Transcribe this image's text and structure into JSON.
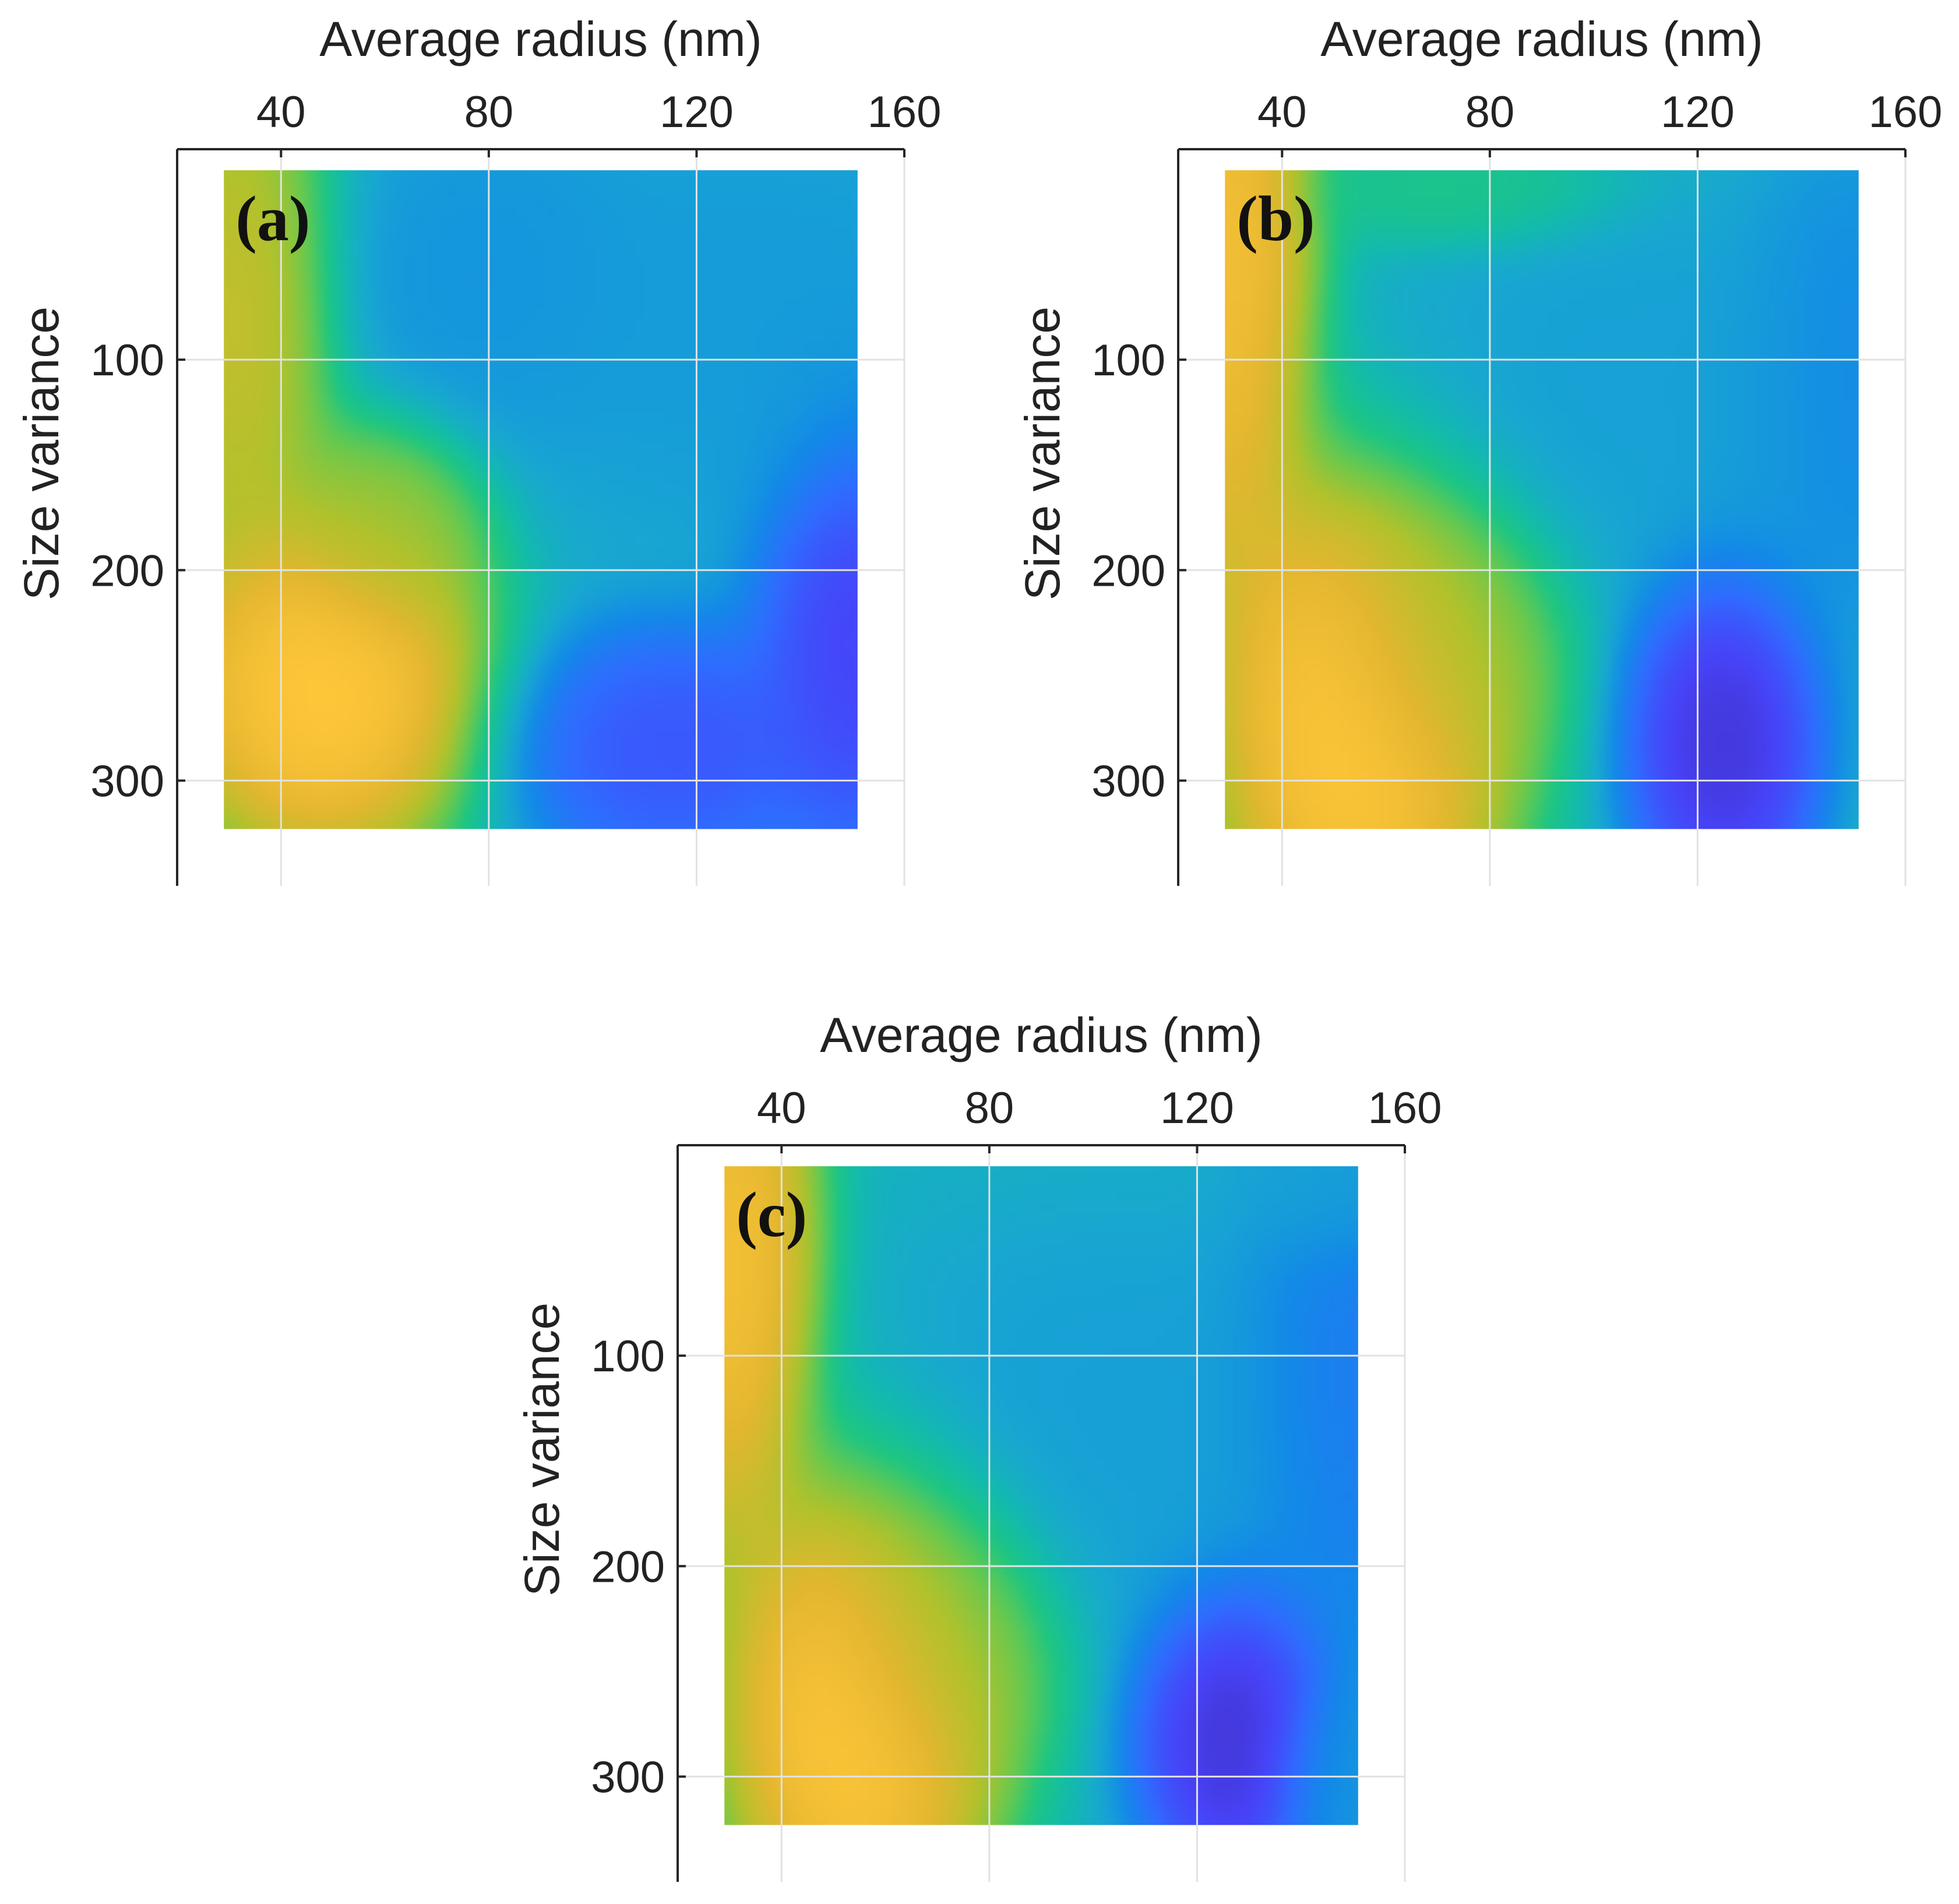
{
  "colormap": [
    "#3e26a8",
    "#4743f8",
    "#2f6cff",
    "#1389e8",
    "#18a8d0",
    "#13bcaa",
    "#1fc681",
    "#67c94f",
    "#b1c22c",
    "#e2b72f",
    "#fec539",
    "#f8fa0d"
  ],
  "chart_data": [
    {
      "type": "heatmap",
      "panel_label": "(a)",
      "xlabel": "Average radius (nm)",
      "ylabel": "Size variance",
      "xlim": [
        20,
        160
      ],
      "ylim": [
        350,
        0
      ],
      "xticks": [
        40,
        80,
        120,
        160
      ],
      "xtick_labels": [
        "40",
        "80",
        "120",
        "160"
      ],
      "yticks": [
        100,
        200,
        300
      ],
      "ytick_labels": [
        "100",
        "200",
        "300"
      ],
      "data_extent": {
        "x": [
          29,
          151
        ],
        "y": [
          10,
          323
        ]
      },
      "grid": true,
      "baseline": 0.38,
      "peaks": [
        {
          "x": 31,
          "y": 80,
          "value": 0.82,
          "sx": 10,
          "sy": 70
        },
        {
          "x": 48,
          "y": 255,
          "value": 1.0,
          "sx": 16,
          "sy": 45
        },
        {
          "x": 60,
          "y": 180,
          "value": 0.72,
          "sx": 10,
          "sy": 28
        },
        {
          "x": 115,
          "y": 285,
          "value": 0.1,
          "sx": 16,
          "sy": 30
        },
        {
          "x": 151,
          "y": 230,
          "value": 0.05,
          "sx": 10,
          "sy": 55
        },
        {
          "x": 80,
          "y": 60,
          "value": 0.3,
          "sx": 15,
          "sy": 40
        },
        {
          "x": 130,
          "y": 80,
          "value": 0.32,
          "sx": 25,
          "sy": 50
        }
      ]
    },
    {
      "type": "heatmap",
      "panel_label": "(b)",
      "xlabel": "Average radius (nm)",
      "ylabel": "Size variance",
      "xlim": [
        20,
        160
      ],
      "ylim": [
        350,
        0
      ],
      "xticks": [
        40,
        80,
        120,
        160
      ],
      "xtick_labels": [
        "40",
        "80",
        "120",
        "160"
      ],
      "yticks": [
        100,
        200,
        300
      ],
      "ytick_labels": [
        "100",
        "200",
        "300"
      ],
      "data_extent": {
        "x": [
          29,
          151
        ],
        "y": [
          10,
          323
        ]
      },
      "grid": true,
      "baseline": 0.42,
      "peaks": [
        {
          "x": 30,
          "y": 60,
          "value": 0.95,
          "sx": 9,
          "sy": 80
        },
        {
          "x": 55,
          "y": 270,
          "value": 1.0,
          "sx": 15,
          "sy": 65
        },
        {
          "x": 70,
          "y": 230,
          "value": 0.7,
          "sx": 12,
          "sy": 40
        },
        {
          "x": 125,
          "y": 280,
          "value": 0.0,
          "sx": 10,
          "sy": 45
        },
        {
          "x": 150,
          "y": 110,
          "value": 0.25,
          "sx": 12,
          "sy": 60
        },
        {
          "x": 110,
          "y": 110,
          "value": 0.33,
          "sx": 30,
          "sy": 50
        },
        {
          "x": 75,
          "y": 20,
          "value": 0.55,
          "sx": 15,
          "sy": 15
        }
      ]
    },
    {
      "type": "heatmap",
      "panel_label": "(c)",
      "xlabel": "Average radius (nm)",
      "ylabel": "Size variance",
      "xlim": [
        20,
        160
      ],
      "ylim": [
        350,
        0
      ],
      "xticks": [
        40,
        80,
        120,
        160
      ],
      "xtick_labels": [
        "40",
        "80",
        "120",
        "160"
      ],
      "yticks": [
        100,
        200,
        300
      ],
      "ytick_labels": [
        "100",
        "200",
        "300"
      ],
      "data_extent": {
        "x": [
          29,
          151
        ],
        "y": [
          10,
          323
        ]
      },
      "grid": true,
      "baseline": 0.4,
      "peaks": [
        {
          "x": 30,
          "y": 60,
          "value": 0.95,
          "sx": 9,
          "sy": 70
        },
        {
          "x": 55,
          "y": 270,
          "value": 1.0,
          "sx": 14,
          "sy": 60
        },
        {
          "x": 70,
          "y": 230,
          "value": 0.7,
          "sx": 12,
          "sy": 40
        },
        {
          "x": 127,
          "y": 280,
          "value": 0.0,
          "sx": 10,
          "sy": 40
        },
        {
          "x": 150,
          "y": 120,
          "value": 0.2,
          "sx": 12,
          "sy": 60
        },
        {
          "x": 145,
          "y": 20,
          "value": 0.35,
          "sx": 10,
          "sy": 20
        },
        {
          "x": 105,
          "y": 130,
          "value": 0.33,
          "sx": 25,
          "sy": 50
        },
        {
          "x": 150,
          "y": 300,
          "value": 0.3,
          "sx": 8,
          "sy": 25
        }
      ]
    }
  ]
}
